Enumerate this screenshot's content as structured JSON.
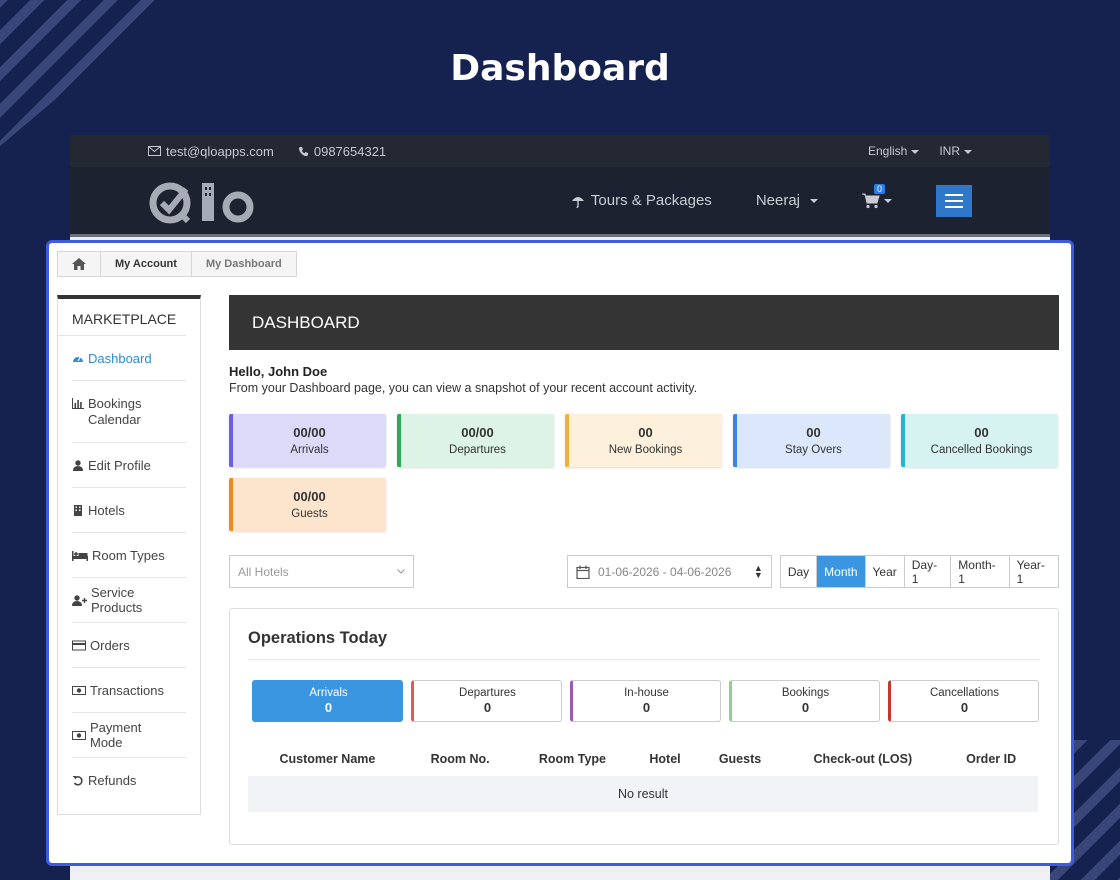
{
  "page_title": "Dashboard",
  "topbar": {
    "email": "test@qloapps.com",
    "phone": "0987654321",
    "language": "English",
    "currency": "INR"
  },
  "navbar": {
    "logo_text": "Qlo",
    "links": [
      {
        "label": "Tours & Packages"
      },
      {
        "label": "Neeraj"
      }
    ],
    "cart_count": "0"
  },
  "breadcrumb": {
    "items": [
      "My Account",
      "My Dashboard"
    ]
  },
  "sidebar": {
    "title": "MARKETPLACE",
    "items": [
      {
        "label": "Dashboard",
        "icon": "dashboard-icon"
      },
      {
        "label": "Bookings Calendar",
        "icon": "bar-chart-icon"
      },
      {
        "label": "Edit Profile",
        "icon": "user-icon"
      },
      {
        "label": "Hotels",
        "icon": "building-icon"
      },
      {
        "label": "Room Types",
        "icon": "bed-icon"
      },
      {
        "label": "Service Products",
        "icon": "user-plus-icon"
      },
      {
        "label": "Orders",
        "icon": "credit-card-icon"
      },
      {
        "label": "Transactions",
        "icon": "money-icon"
      },
      {
        "label": "Payment Mode",
        "icon": "money-icon"
      },
      {
        "label": "Refunds",
        "icon": "undo-icon"
      }
    ]
  },
  "main": {
    "header": "DASHBOARD",
    "hello": "Hello, John Doe",
    "intro": "From your Dashboard page, you can view a snapshot of your recent account activity.",
    "stats": [
      {
        "value": "00/00",
        "label": "Arrivals",
        "bg": "#dcdaf8",
        "border": "#6c5ce7"
      },
      {
        "value": "00/00",
        "label": "Departures",
        "bg": "#dcf3e6",
        "border": "#2eaa5c"
      },
      {
        "value": "00",
        "label": "New Bookings",
        "bg": "#fdf1dc",
        "border": "#f0b13a"
      },
      {
        "value": "00",
        "label": "Stay Overs",
        "bg": "#dbe8fb",
        "border": "#3b82e6"
      },
      {
        "value": "00",
        "label": "Cancelled Bookings",
        "bg": "#d6f2f1",
        "border": "#21b7d0"
      },
      {
        "value": "00/00",
        "label": "Guests",
        "bg": "#fde5cd",
        "border": "#f08a1c"
      }
    ],
    "filters": {
      "hotel_select": "All Hotels",
      "date_range": "01-06-2026 - 04-06-2026",
      "periods": [
        "Day",
        "Month",
        "Year",
        "Day-1",
        "Month-1",
        "Year-1"
      ],
      "active_period": "Month"
    },
    "operations": {
      "title": "Operations Today",
      "tabs": [
        {
          "label": "Arrivals",
          "count": "0",
          "accent": "#3a96e0"
        },
        {
          "label": "Departures",
          "count": "0",
          "accent": "#e05a5a"
        },
        {
          "label": "In-house",
          "count": "0",
          "accent": "#9b59b6"
        },
        {
          "label": "Bookings",
          "count": "0",
          "accent": "#8fd18a"
        },
        {
          "label": "Cancellations",
          "count": "0",
          "accent": "#c0392b"
        }
      ],
      "columns": [
        "Customer Name",
        "Room No.",
        "Room Type",
        "Hotel",
        "Guests",
        "Check-out (LOS)",
        "Order ID"
      ],
      "empty_text": "No result"
    }
  }
}
